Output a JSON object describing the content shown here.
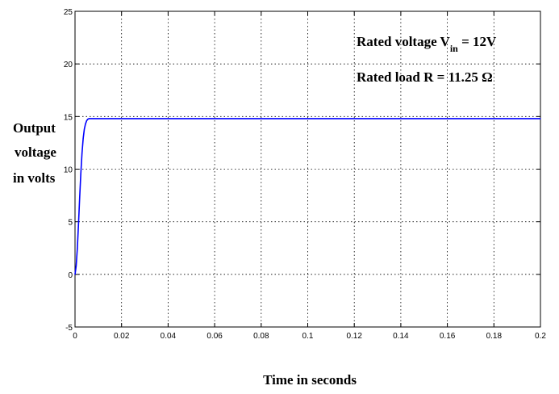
{
  "chart_data": {
    "type": "line",
    "xlabel": "Time in seconds",
    "ylabel_lines": [
      "Output",
      "voltage",
      "in volts"
    ],
    "xlim": [
      0,
      0.2
    ],
    "ylim": [
      -5,
      25
    ],
    "x_ticks": [
      0,
      0.02,
      0.04,
      0.06,
      0.08,
      0.1,
      0.12,
      0.14,
      0.16,
      0.18,
      0.2
    ],
    "x_tick_labels": [
      "0",
      "0.02",
      "0.04",
      "0.06",
      "0.08",
      "0.1",
      "0.12",
      "0.14",
      "0.16",
      "0.18",
      "0.2"
    ],
    "y_ticks": [
      -5,
      0,
      5,
      10,
      15,
      20,
      25
    ],
    "y_tick_labels": [
      "-5",
      "0",
      "5",
      "10",
      "15",
      "20",
      "25"
    ],
    "grid": true,
    "series": [
      {
        "color": "#0000ff",
        "x": [
          0,
          0.0005,
          0.001,
          0.0015,
          0.002,
          0.0025,
          0.003,
          0.0035,
          0.004,
          0.0045,
          0.005,
          0.0055,
          0.006,
          0.007,
          0.008,
          0.01,
          0.05,
          0.1,
          0.15,
          0.2
        ],
        "y": [
          0,
          0.8,
          2.5,
          4.8,
          7.3,
          9.6,
          11.5,
          12.9,
          13.8,
          14.3,
          14.6,
          14.75,
          14.8,
          14.8,
          14.8,
          14.8,
          14.8,
          14.8,
          14.8,
          14.8
        ]
      }
    ],
    "annotations": {
      "line1_prefix": "Rated voltage V",
      "line1_sub": "in",
      "line1_suffix": " = 12V",
      "line2": "Rated load R = 11.25 Ω"
    }
  }
}
